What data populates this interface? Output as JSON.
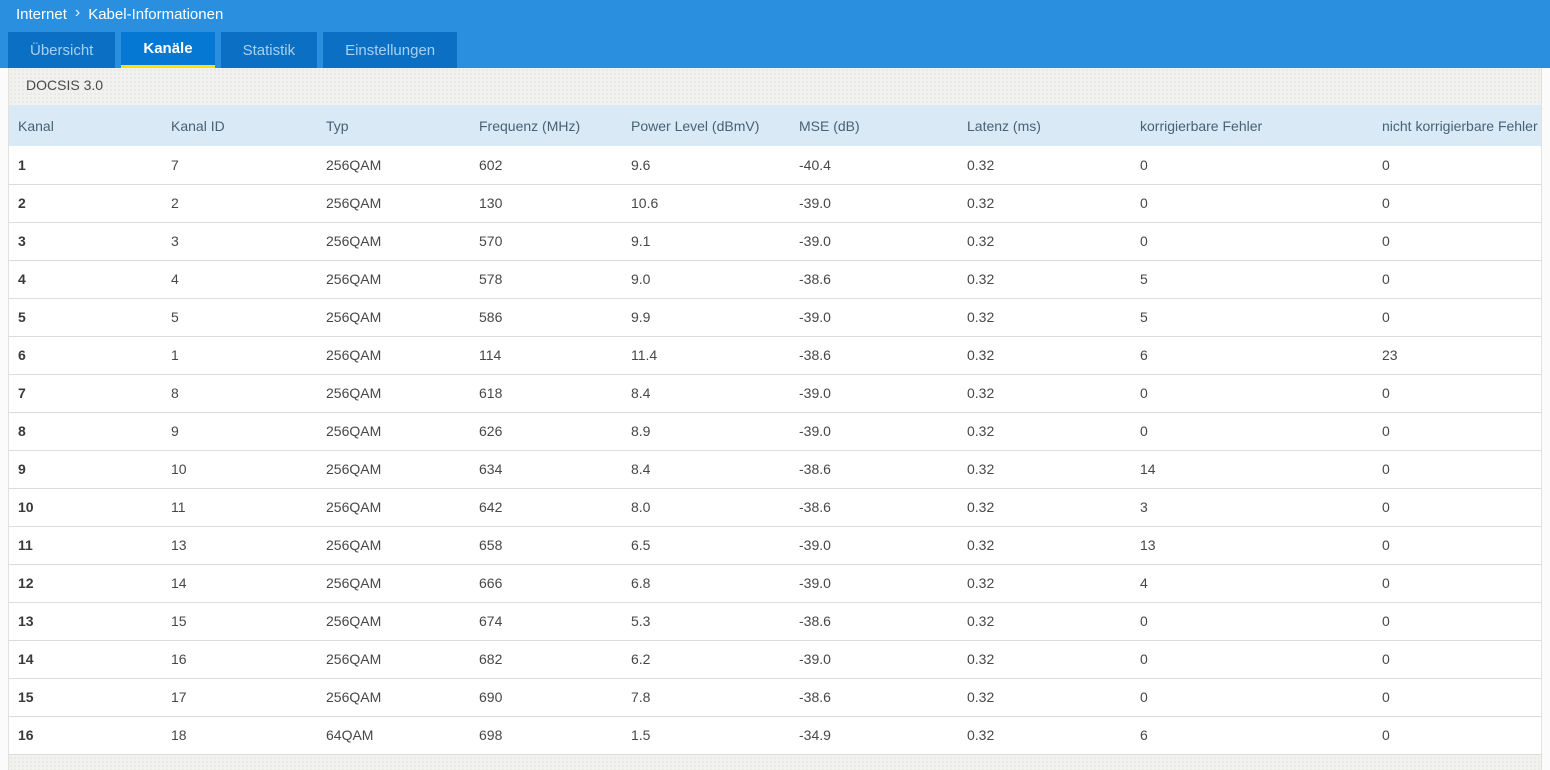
{
  "breadcrumb": {
    "section": "Internet",
    "separator": "›",
    "page": "Kabel-Informationen"
  },
  "tabs": [
    {
      "label": "Übersicht",
      "active": false
    },
    {
      "label": "Kanäle",
      "active": true
    },
    {
      "label": "Statistik",
      "active": false
    },
    {
      "label": "Einstellungen",
      "active": false
    }
  ],
  "standard_label": "DOCSIS 3.0",
  "table": {
    "columns": [
      "Kanal",
      "Kanal ID",
      "Typ",
      "Frequenz (MHz)",
      "Power Level (dBmV)",
      "MSE (dB)",
      "Latenz (ms)",
      "korrigierbare Fehler",
      "nicht korrigierbare Fehler"
    ],
    "rows": [
      [
        "1",
        "7",
        "256QAM",
        "602",
        "9.6",
        "-40.4",
        "0.32",
        "0",
        "0"
      ],
      [
        "2",
        "2",
        "256QAM",
        "130",
        "10.6",
        "-39.0",
        "0.32",
        "0",
        "0"
      ],
      [
        "3",
        "3",
        "256QAM",
        "570",
        "9.1",
        "-39.0",
        "0.32",
        "0",
        "0"
      ],
      [
        "4",
        "4",
        "256QAM",
        "578",
        "9.0",
        "-38.6",
        "0.32",
        "5",
        "0"
      ],
      [
        "5",
        "5",
        "256QAM",
        "586",
        "9.9",
        "-39.0",
        "0.32",
        "5",
        "0"
      ],
      [
        "6",
        "1",
        "256QAM",
        "114",
        "11.4",
        "-38.6",
        "0.32",
        "6",
        "23"
      ],
      [
        "7",
        "8",
        "256QAM",
        "618",
        "8.4",
        "-39.0",
        "0.32",
        "0",
        "0"
      ],
      [
        "8",
        "9",
        "256QAM",
        "626",
        "8.9",
        "-39.0",
        "0.32",
        "0",
        "0"
      ],
      [
        "9",
        "10",
        "256QAM",
        "634",
        "8.4",
        "-38.6",
        "0.32",
        "14",
        "0"
      ],
      [
        "10",
        "11",
        "256QAM",
        "642",
        "8.0",
        "-38.6",
        "0.32",
        "3",
        "0"
      ],
      [
        "11",
        "13",
        "256QAM",
        "658",
        "6.5",
        "-39.0",
        "0.32",
        "13",
        "0"
      ],
      [
        "12",
        "14",
        "256QAM",
        "666",
        "6.8",
        "-39.0",
        "0.32",
        "4",
        "0"
      ],
      [
        "13",
        "15",
        "256QAM",
        "674",
        "5.3",
        "-38.6",
        "0.32",
        "0",
        "0"
      ],
      [
        "14",
        "16",
        "256QAM",
        "682",
        "6.2",
        "-39.0",
        "0.32",
        "0",
        "0"
      ],
      [
        "15",
        "17",
        "256QAM",
        "690",
        "7.8",
        "-38.6",
        "0.32",
        "0",
        "0"
      ],
      [
        "16",
        "18",
        "64QAM",
        "698",
        "1.5",
        "-34.9",
        "0.32",
        "6",
        "0"
      ]
    ]
  },
  "colors": {
    "header_blue": "#2a8fdf",
    "tab_inactive": "#0b70c4",
    "tab_active": "#0478d2",
    "tab_text_inactive": "#a8d0f0",
    "active_tab_underline": "#ffe100",
    "content_bg": "#f1f1ef",
    "table_header_bg": "#d9e9f6",
    "table_header_text": "#476274"
  }
}
